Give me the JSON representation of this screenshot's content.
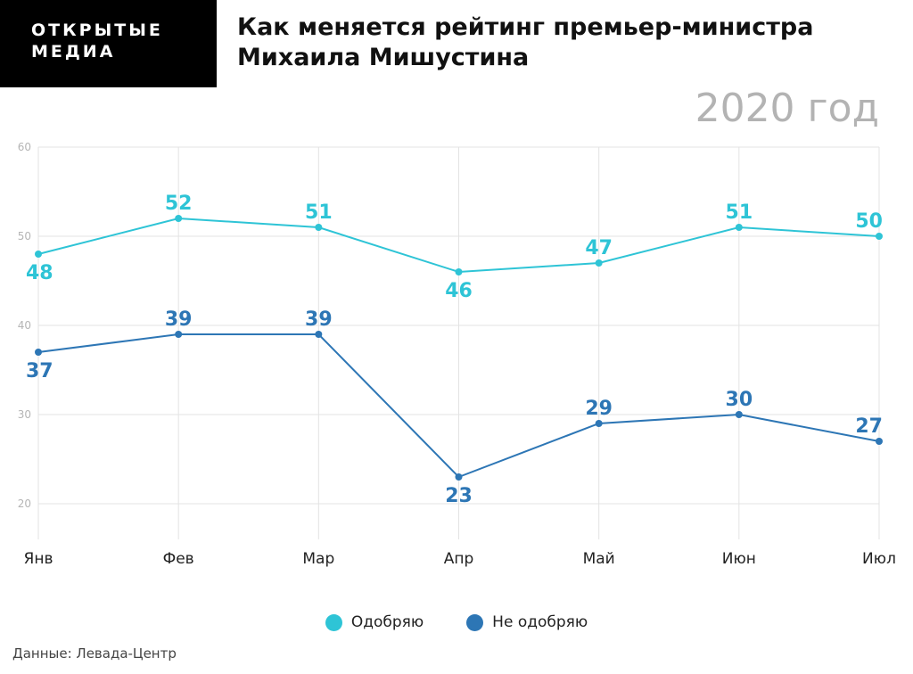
{
  "header": {
    "logo_line1": "ОТКРЫТЫЕ",
    "logo_line2": "МЕДИА",
    "title": "Как меняется рейтинг премьер-министра Михаила Мишустина",
    "year": "2020 год"
  },
  "source": "Данные: Левада-Центр",
  "chart_data": {
    "type": "line",
    "categories": [
      "Янв",
      "Фев",
      "Мар",
      "Апр",
      "Май",
      "Июн",
      "Июл"
    ],
    "series": [
      {
        "name": "Одобряю",
        "values": [
          48,
          52,
          51,
          46,
          47,
          51,
          50
        ],
        "color": "#2ec4d6"
      },
      {
        "name": "Не одобряю",
        "values": [
          37,
          39,
          39,
          23,
          29,
          30,
          27
        ],
        "color": "#2d76b5"
      }
    ],
    "ylim": [
      16,
      60
    ],
    "yticks": [
      20,
      30,
      40,
      50,
      60
    ],
    "grid": true,
    "legend_position": "bottom"
  }
}
